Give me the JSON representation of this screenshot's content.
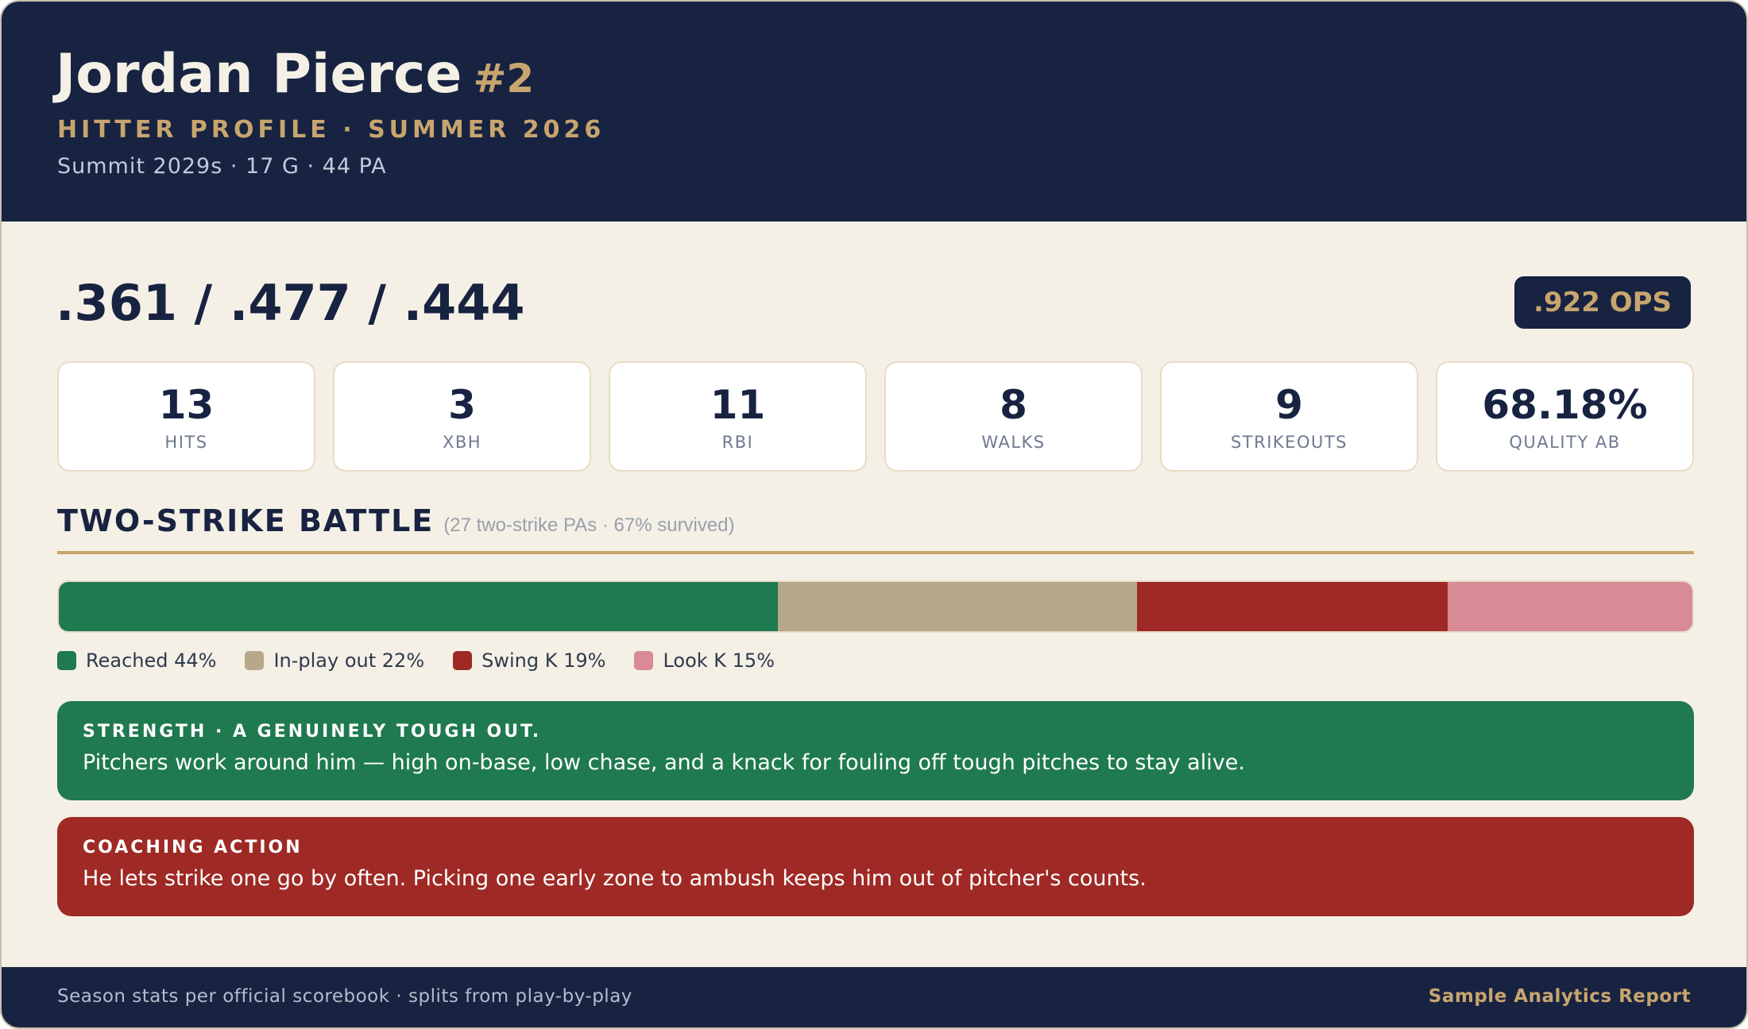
{
  "header": {
    "player_name": "Jordan Pierce",
    "player_number": "#2",
    "profile_subtitle": "HITTER PROFILE · SUMMER 2026",
    "team_line": "Summit 2029s · 17 G · 44 PA"
  },
  "slash_line": ".361 / .477 / .444",
  "ops_badge": ".922 OPS",
  "stats": [
    {
      "value": "13",
      "label": "HITS"
    },
    {
      "value": "3",
      "label": "XBH"
    },
    {
      "value": "11",
      "label": "RBI"
    },
    {
      "value": "8",
      "label": "WALKS"
    },
    {
      "value": "9",
      "label": "STRIKEOUTS"
    },
    {
      "value": "68.18%",
      "label": "QUALITY AB"
    }
  ],
  "two_strike": {
    "title": "TWO-STRIKE BATTLE",
    "meta": "(27 two-strike PAs · 67% survived)",
    "segments": [
      {
        "label": "Reached 44%",
        "percent": 44,
        "color": "#1f7a4f"
      },
      {
        "label": "In-play out 22%",
        "percent": 22,
        "color": "#b8a88b"
      },
      {
        "label": "Swing K 19%",
        "percent": 19,
        "color": "#9e2925"
      },
      {
        "label": "Look K 15%",
        "percent": 15,
        "color": "#d88a95"
      }
    ]
  },
  "callouts": {
    "strength": {
      "tag": "STRENGTH · A GENUINELY TOUGH OUT.",
      "body": "Pitchers work around him — high on-base, low chase, and a knack for fouling off tough pitches to stay alive."
    },
    "action": {
      "tag": "COACHING ACTION",
      "body": "He lets strike one go by often. Picking one early zone to ambush keeps him out of pitcher's counts."
    }
  },
  "footer": {
    "note": "Season stats per official scorebook · splits from play-by-play",
    "brand": "Sample Analytics Report"
  }
}
